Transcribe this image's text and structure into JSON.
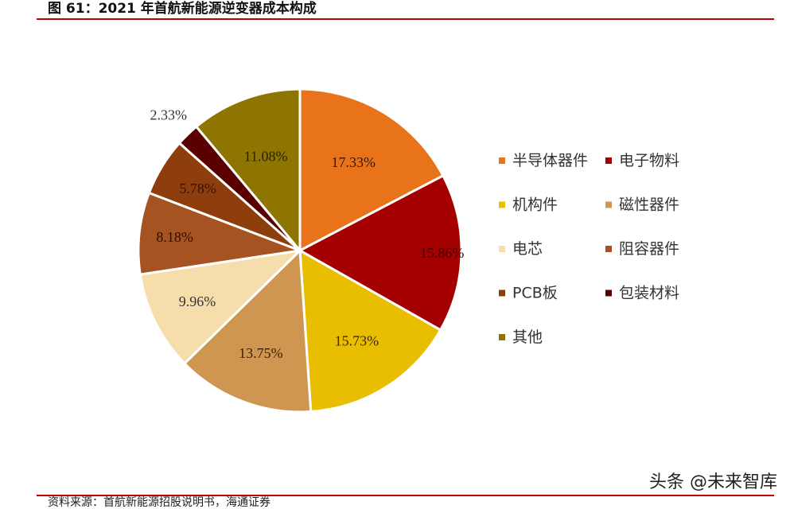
{
  "header": {
    "title": "图 61：2021 年首航新能源逆变器成本构成"
  },
  "chart_data": {
    "type": "pie",
    "title": "图 61：2021 年首航新能源逆变器成本构成",
    "slices": [
      {
        "name": "半导体器件",
        "value": 17.33,
        "label": "17.33%",
        "color": "#E8731A"
      },
      {
        "name": "电子物料",
        "value": 15.86,
        "label": "15.86%",
        "color": "#A50000"
      },
      {
        "name": "机构件",
        "value": 15.73,
        "label": "15.73%",
        "color": "#E9BE00"
      },
      {
        "name": "磁性器件",
        "value": 13.75,
        "label": "13.75%",
        "color": "#CE9650"
      },
      {
        "name": "电芯",
        "value": 9.96,
        "label": "9.96%",
        "color": "#F6DEAC"
      },
      {
        "name": "阻容器件",
        "value": 8.18,
        "label": "8.18%",
        "color": "#A45321"
      },
      {
        "name": "PCB板",
        "value": 5.78,
        "label": "5.78%",
        "color": "#8E3E0D"
      },
      {
        "name": "包装材料",
        "value": 2.33,
        "label": "2.33%",
        "color": "#5A0000"
      },
      {
        "name": "其他",
        "value": 11.08,
        "label": "11.08%",
        "color": "#8E7400"
      }
    ],
    "legend_position": "right"
  },
  "footer": {
    "source": "资料来源：首航新能源招股说明书，海通证券",
    "watermark": "头条 @未来智库"
  }
}
